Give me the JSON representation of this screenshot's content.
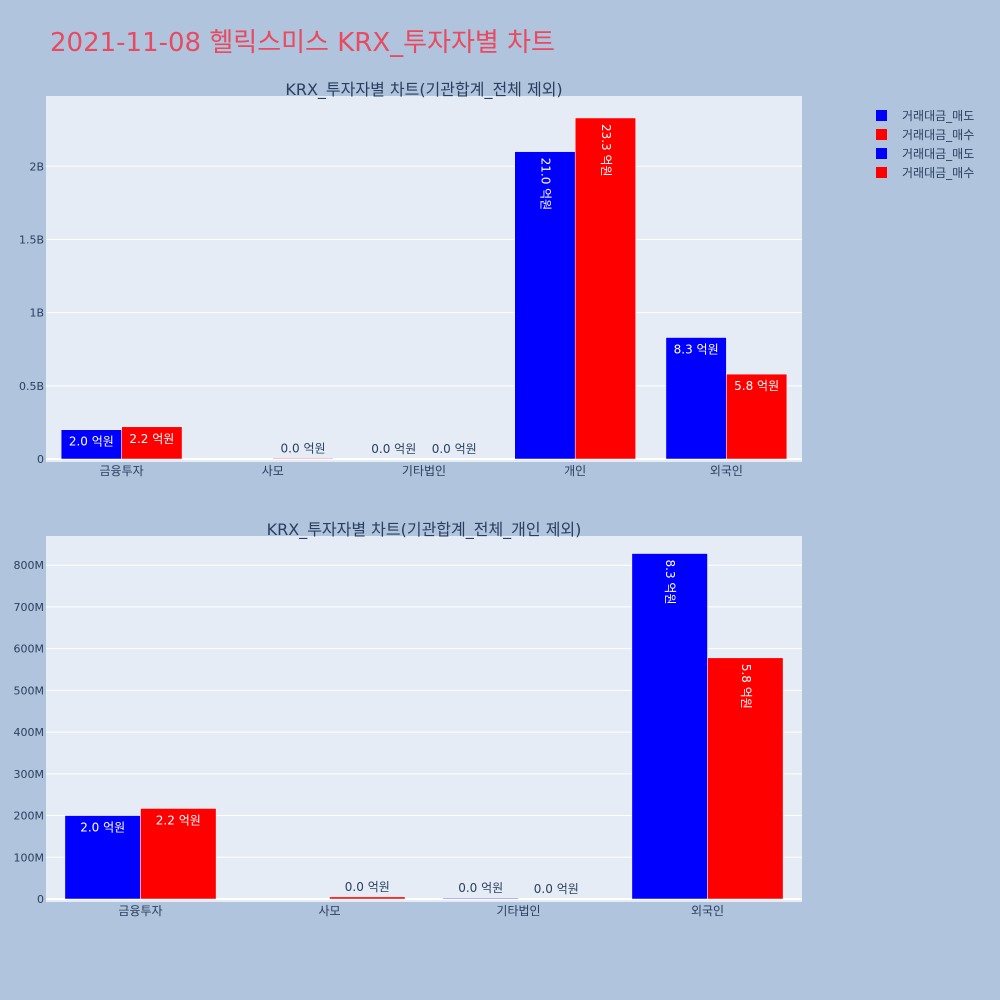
{
  "page_title": "2021-11-08 헬릭스미스 KRX_투자자별 차트",
  "colors": {
    "sell": "#0000ff",
    "buy": "#ff0000",
    "plot_bg": "#e5ecf6",
    "page_bg": "#b0c4de",
    "title": "#e84a5f"
  },
  "legend": [
    {
      "label": "거래대금_매도",
      "color": "#0000ff"
    },
    {
      "label": "거래대금_매수",
      "color": "#ff0000"
    },
    {
      "label": "거래대금_매도",
      "color": "#0000ff"
    },
    {
      "label": "거래대금_매수",
      "color": "#ff0000"
    }
  ],
  "chart_data": [
    {
      "type": "bar",
      "title": "KRX_투자자별 차트(기관합계_전체 제외)",
      "categories": [
        "금융투자",
        "사모",
        "기타법인",
        "개인",
        "외국인"
      ],
      "series": [
        {
          "name": "거래대금_매도",
          "color": "#0000ff",
          "values": [
            200000000,
            0,
            0,
            2100000000,
            830000000
          ],
          "labels": [
            "2.0 억원",
            "",
            "0.0 억원",
            "21.0 억원",
            "8.3 억원"
          ]
        },
        {
          "name": "거래대금_매수",
          "color": "#ff0000",
          "values": [
            220000000,
            5000000,
            0,
            2330000000,
            580000000
          ],
          "labels": [
            "2.2 억원",
            "0.0 억원",
            "0.0 억원",
            "23.3 억원",
            "5.8 억원"
          ]
        }
      ],
      "ylim": [
        0,
        2480000000
      ],
      "yticks": [
        0,
        500000000,
        1000000000,
        1500000000,
        2000000000
      ],
      "ytick_labels": [
        "0",
        "0.5B",
        "1B",
        "1.5B",
        "2B"
      ],
      "grid": true
    },
    {
      "type": "bar",
      "title": "KRX_투자자별 차트(기관합계_전체_개인 제외)",
      "categories": [
        "금융투자",
        "사모",
        "기타법인",
        "외국인"
      ],
      "series": [
        {
          "name": "거래대금_매도",
          "color": "#0000ff",
          "values": [
            200000000,
            0,
            2000000,
            828000000
          ],
          "labels": [
            "2.0 억원",
            "",
            "0.0 억원",
            "8.3 억원"
          ]
        },
        {
          "name": "거래대금_매수",
          "color": "#ff0000",
          "values": [
            217000000,
            5000000,
            0,
            578000000
          ],
          "labels": [
            "2.2 억원",
            "0.0 억원",
            "0.0 억원",
            "5.8 억원"
          ]
        }
      ],
      "ylim": [
        0,
        870000000
      ],
      "yticks": [
        0,
        100000000,
        200000000,
        300000000,
        400000000,
        500000000,
        600000000,
        700000000,
        800000000
      ],
      "ytick_labels": [
        "0",
        "100M",
        "200M",
        "300M",
        "400M",
        "500M",
        "600M",
        "700M",
        "800M"
      ],
      "grid": true
    }
  ]
}
